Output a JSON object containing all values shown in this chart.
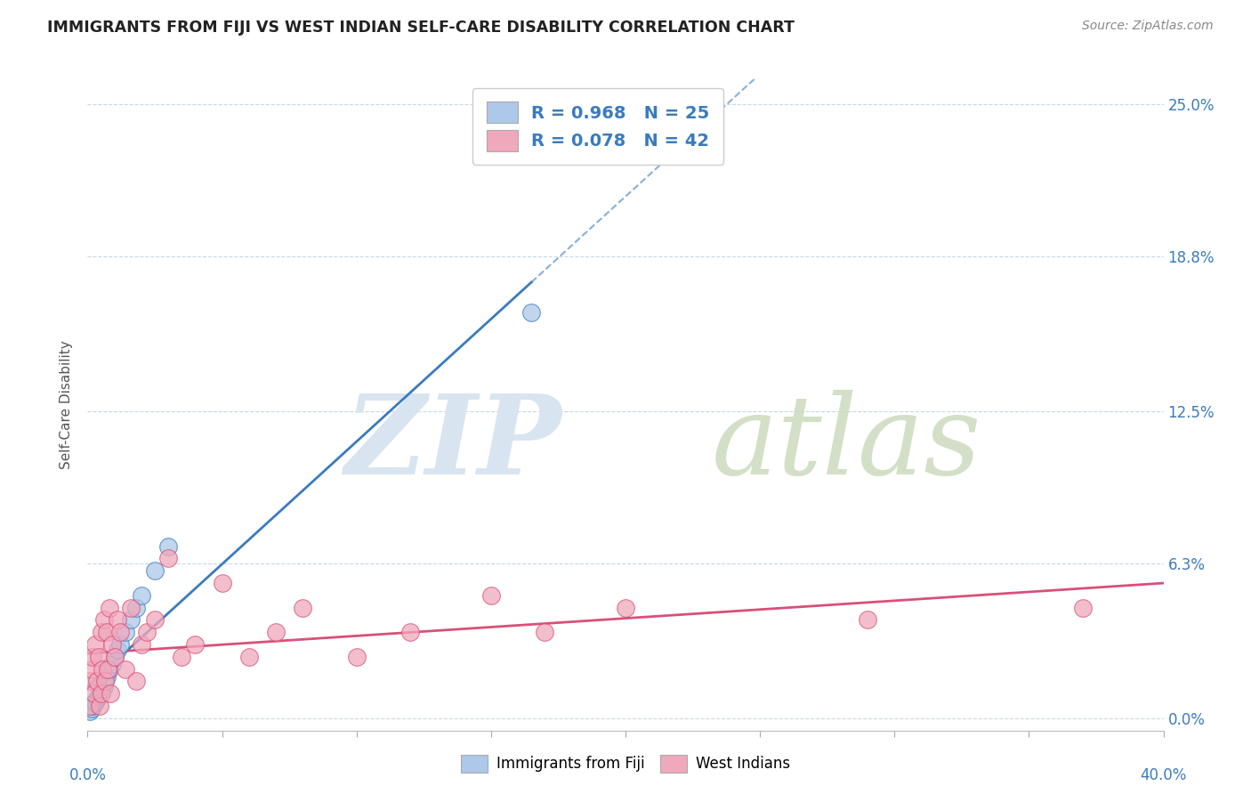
{
  "title": "IMMIGRANTS FROM FIJI VS WEST INDIAN SELF-CARE DISABILITY CORRELATION CHART",
  "source": "Source: ZipAtlas.com",
  "ylabel": "Self-Care Disability",
  "fiji_R": 0.968,
  "fiji_N": 25,
  "wi_R": 0.078,
  "wi_N": 42,
  "fiji_color": "#adc8e8",
  "wi_color": "#f0a8bc",
  "fiji_line_color": "#3a7bbf",
  "wi_line_color": "#d9507a",
  "background_color": "#ffffff",
  "grid_color": "#c8d8e8",
  "xlim": [
    0.0,
    40.0
  ],
  "ylim": [
    -0.5,
    26.0
  ],
  "ytick_pcts": [
    0.0,
    6.3,
    12.5,
    18.8,
    25.0
  ],
  "ytick_labels": [
    "0.0%",
    "6.3%",
    "12.5%",
    "18.8%",
    "25.0%"
  ],
  "fiji_x": [
    0.1,
    0.15,
    0.2,
    0.25,
    0.3,
    0.35,
    0.4,
    0.45,
    0.5,
    0.55,
    0.6,
    0.65,
    0.7,
    0.8,
    0.9,
    1.0,
    1.1,
    1.2,
    1.4,
    1.6,
    1.8,
    2.0,
    2.5,
    3.0,
    16.5
  ],
  "fiji_y": [
    0.3,
    0.4,
    0.5,
    0.6,
    0.7,
    0.8,
    0.9,
    1.0,
    1.1,
    1.2,
    1.3,
    1.5,
    1.7,
    2.0,
    2.2,
    2.5,
    2.8,
    3.0,
    3.5,
    4.0,
    4.5,
    5.0,
    6.0,
    7.0,
    16.5
  ],
  "wi_x": [
    0.08,
    0.1,
    0.15,
    0.2,
    0.25,
    0.3,
    0.35,
    0.4,
    0.45,
    0.5,
    0.5,
    0.55,
    0.6,
    0.65,
    0.7,
    0.75,
    0.8,
    0.85,
    0.9,
    1.0,
    1.1,
    1.2,
    1.4,
    1.6,
    1.8,
    2.0,
    2.2,
    2.5,
    3.0,
    3.5,
    4.0,
    5.0,
    6.0,
    7.0,
    8.0,
    10.0,
    12.0,
    15.0,
    17.0,
    20.0,
    29.0,
    37.0
  ],
  "wi_y": [
    0.5,
    1.5,
    2.0,
    2.5,
    1.0,
    3.0,
    1.5,
    2.5,
    0.5,
    3.5,
    1.0,
    2.0,
    4.0,
    1.5,
    3.5,
    2.0,
    4.5,
    1.0,
    3.0,
    2.5,
    4.0,
    3.5,
    2.0,
    4.5,
    1.5,
    3.0,
    3.5,
    4.0,
    6.5,
    2.5,
    3.0,
    5.5,
    2.5,
    3.5,
    4.5,
    2.5,
    3.5,
    5.0,
    3.5,
    4.5,
    4.0,
    4.5
  ]
}
